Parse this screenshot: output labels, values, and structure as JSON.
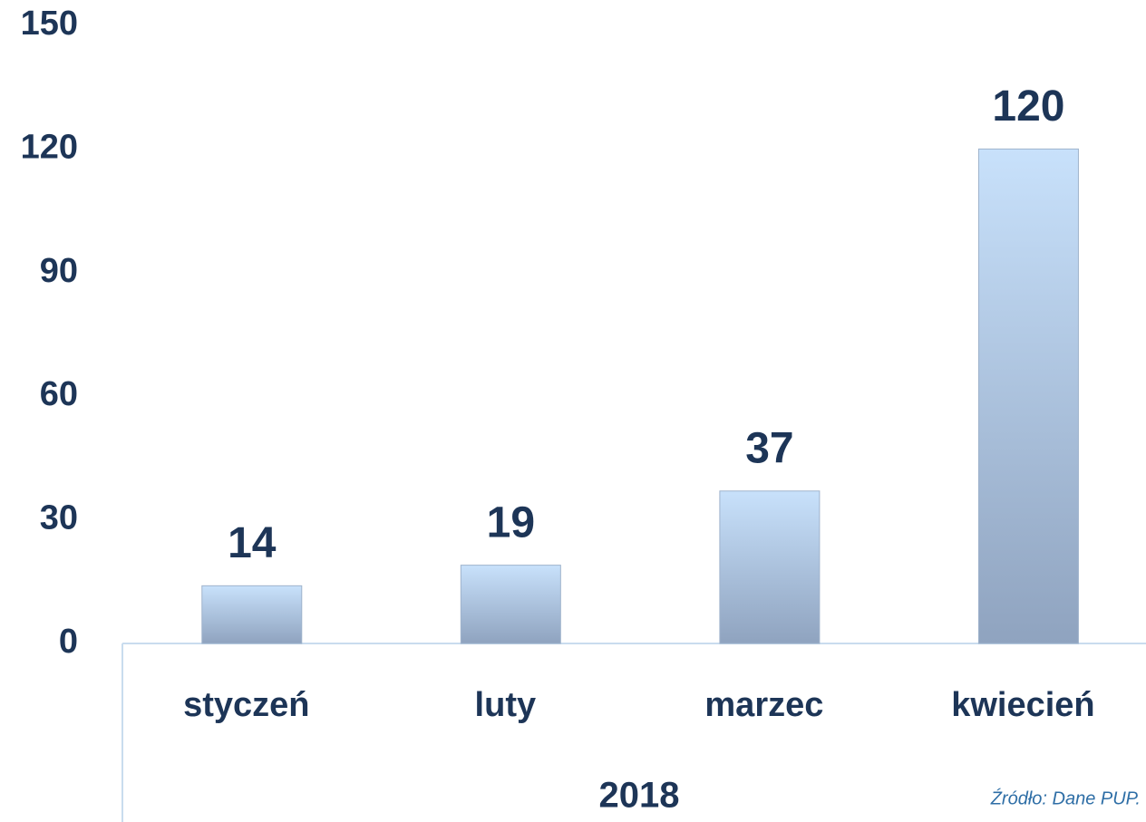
{
  "chart_data": {
    "type": "bar",
    "categories": [
      "styczeń",
      "luty",
      "marzec",
      "kwiecień"
    ],
    "values": [
      14,
      19,
      37,
      120
    ],
    "color": "#c8e1fb",
    "ylim": [
      0,
      150
    ],
    "yticks": [
      0,
      30,
      60,
      90,
      120,
      150
    ],
    "xlabel": "2018",
    "source": "Źródło: Dane PUP.",
    "grid": false
  }
}
